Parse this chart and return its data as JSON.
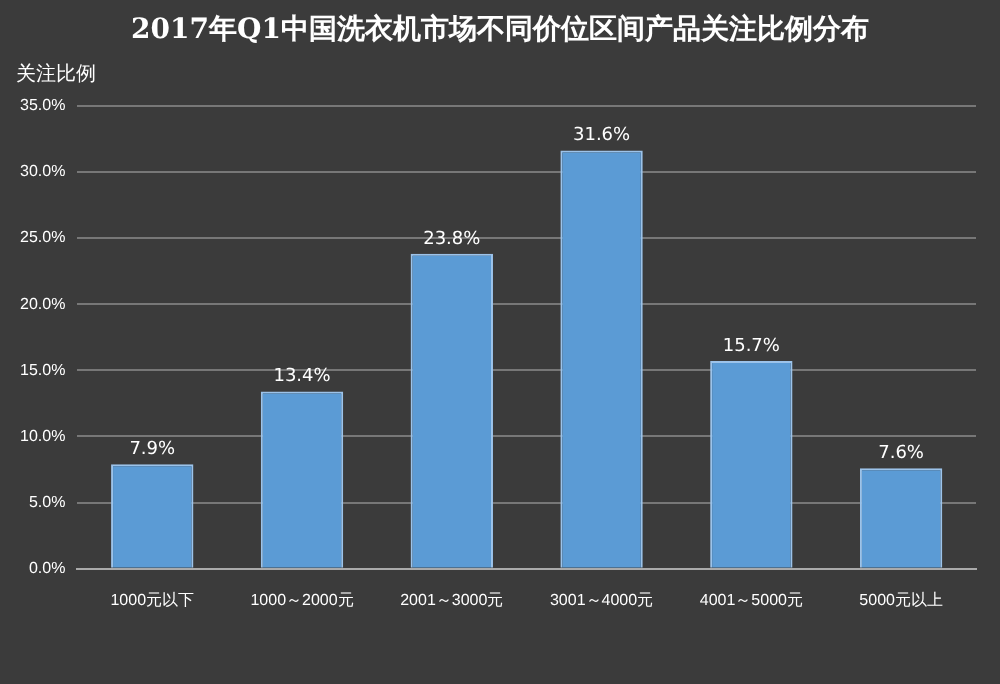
{
  "chart_data": {
    "type": "bar",
    "title": "2017年Q1中国洗衣机市场不同价位区间产品关注比例分布",
    "ylabel": "关注比例",
    "categories": [
      "1000元以下",
      "1000～2000元",
      "2001～3000元",
      "3001～4000元",
      "4001～5000元",
      "5000元以上"
    ],
    "values": [
      7.9,
      13.4,
      23.8,
      31.6,
      15.7,
      7.6
    ],
    "value_labels": [
      "7.9%",
      "13.4%",
      "23.8%",
      "31.6%",
      "15.7%",
      "7.6%"
    ],
    "color": "#5b9bd5",
    "ylim": [
      0,
      35
    ],
    "yticks": [
      {
        "value": 0,
        "label": "0.0%"
      },
      {
        "value": 5,
        "label": "5.0%"
      },
      {
        "value": 10,
        "label": "10.0%"
      },
      {
        "value": 15,
        "label": "15.0%"
      },
      {
        "value": 20,
        "label": "20.0%"
      },
      {
        "value": 25,
        "label": "25.0%"
      },
      {
        "value": 30,
        "label": "30.0%"
      },
      {
        "value": 35,
        "label": "35.0%"
      }
    ],
    "grid": "y"
  }
}
